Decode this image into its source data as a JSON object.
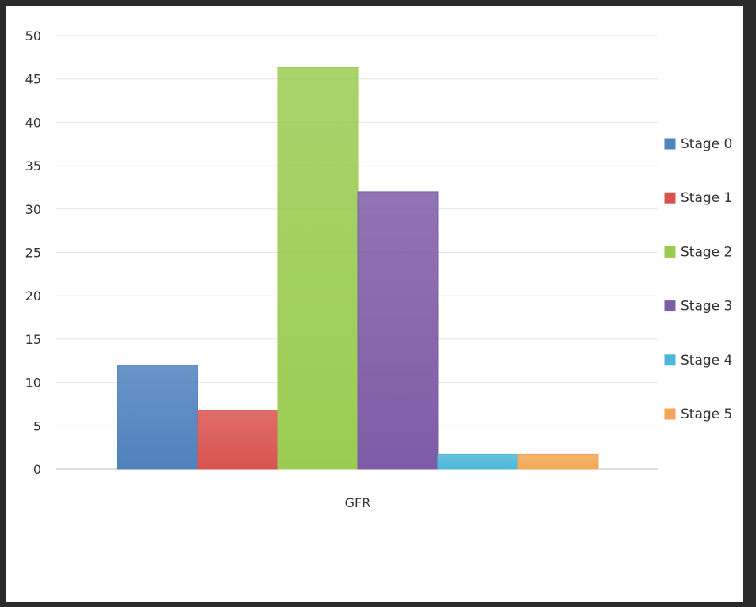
{
  "chart_data": {
    "type": "bar",
    "categories": [
      "GFR"
    ],
    "series": [
      {
        "name": "Stage 0",
        "values": [
          12
        ],
        "color": "#4f81bd"
      },
      {
        "name": "Stage 1",
        "values": [
          6.8
        ],
        "color": "#d9534f"
      },
      {
        "name": "Stage 2",
        "values": [
          46.3
        ],
        "color": "#9bcc52"
      },
      {
        "name": "Stage 3",
        "values": [
          32
        ],
        "color": "#7e5ca7"
      },
      {
        "name": "Stage 4",
        "values": [
          1.7
        ],
        "color": "#4bb8d9"
      },
      {
        "name": "Stage 5",
        "values": [
          1.7
        ],
        "color": "#f2a755"
      }
    ],
    "ylim": [
      0,
      50
    ],
    "yticks": [
      0,
      5,
      10,
      15,
      20,
      25,
      30,
      35,
      40,
      45,
      50
    ],
    "grid": true,
    "legend_position": "right"
  }
}
